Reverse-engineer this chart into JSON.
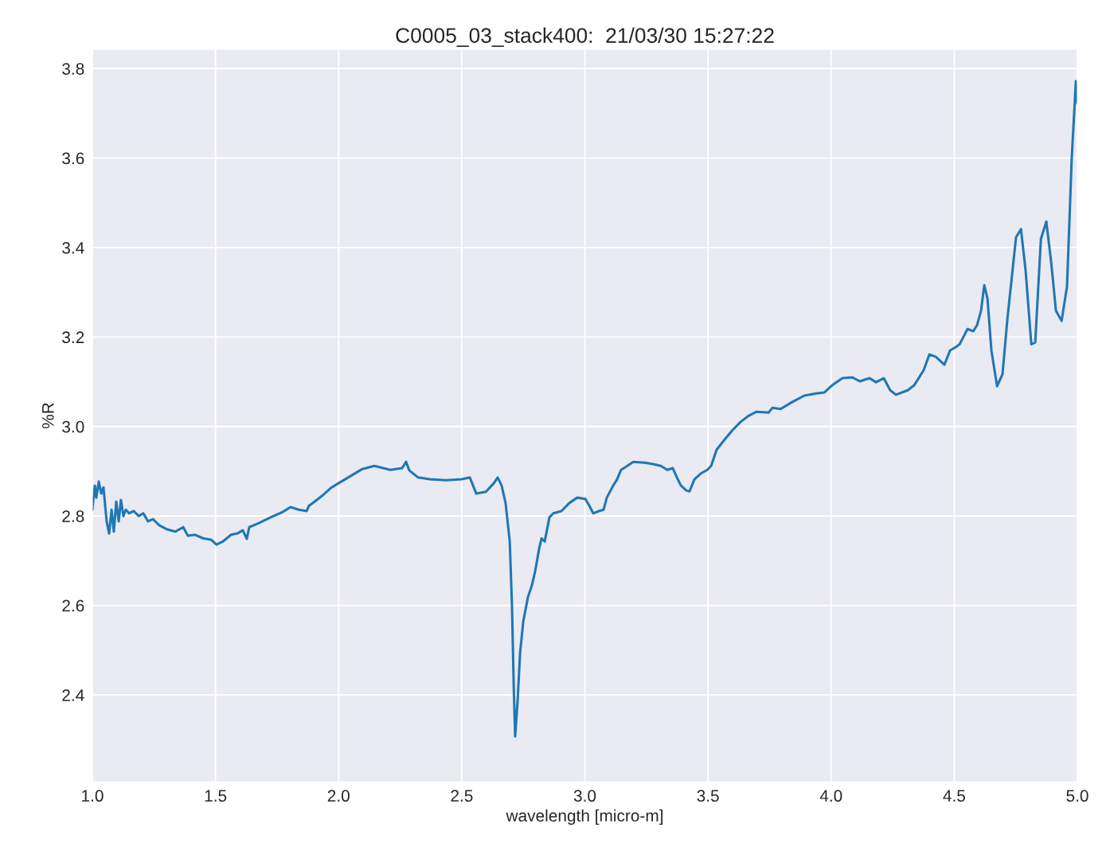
{
  "chart_data": {
    "type": "line",
    "title": "C0005_03_stack400:  21/03/30 15:27:22",
    "xlabel": "wavelength [micro-m]",
    "ylabel": "%R",
    "xlim": [
      1.0,
      5.0
    ],
    "ylim": [
      2.206,
      3.843
    ],
    "xticks": [
      {
        "value": 1.0,
        "label": "1.0"
      },
      {
        "value": 1.5,
        "label": "1.5"
      },
      {
        "value": 2.0,
        "label": "2.0"
      },
      {
        "value": 2.5,
        "label": "2.5"
      },
      {
        "value": 3.0,
        "label": "3.0"
      },
      {
        "value": 3.5,
        "label": "3.5"
      },
      {
        "value": 4.0,
        "label": "4.0"
      },
      {
        "value": 4.5,
        "label": "4.5"
      },
      {
        "value": 5.0,
        "label": "5.0"
      }
    ],
    "yticks": [
      {
        "value": 2.4,
        "label": "2.4"
      },
      {
        "value": 2.6,
        "label": "2.6"
      },
      {
        "value": 2.8,
        "label": "2.8"
      },
      {
        "value": 3.0,
        "label": "3.0"
      },
      {
        "value": 3.2,
        "label": "3.2"
      },
      {
        "value": 3.4,
        "label": "3.4"
      },
      {
        "value": 3.6,
        "label": "3.6"
      },
      {
        "value": 3.8,
        "label": "3.8"
      }
    ],
    "grid": true,
    "marker": "none",
    "line_style": "solid",
    "series": [
      {
        "color": "#1f77b4",
        "x": [
          1.0,
          1.01,
          1.016,
          1.026,
          1.036,
          1.045,
          1.058,
          1.068,
          1.078,
          1.087,
          1.097,
          1.107,
          1.116,
          1.126,
          1.136,
          1.149,
          1.168,
          1.188,
          1.207,
          1.226,
          1.246,
          1.272,
          1.304,
          1.336,
          1.369,
          1.388,
          1.417,
          1.45,
          1.482,
          1.504,
          1.53,
          1.563,
          1.589,
          1.611,
          1.627,
          1.637,
          1.676,
          1.724,
          1.773,
          1.805,
          1.838,
          1.87,
          1.88,
          1.902,
          1.935,
          1.967,
          1.999,
          2.048,
          2.096,
          2.145,
          2.21,
          2.258,
          2.274,
          2.287,
          2.323,
          2.371,
          2.436,
          2.5,
          2.533,
          2.559,
          2.598,
          2.63,
          2.646,
          2.662,
          2.678,
          2.695,
          2.704,
          2.711,
          2.717,
          2.727,
          2.737,
          2.75,
          2.769,
          2.785,
          2.798,
          2.814,
          2.824,
          2.837,
          2.856,
          2.872,
          2.905,
          2.937,
          2.969,
          3.002,
          3.018,
          3.034,
          3.057,
          3.076,
          3.089,
          3.115,
          3.131,
          3.147,
          3.17,
          3.196,
          3.244,
          3.277,
          3.309,
          3.335,
          3.357,
          3.374,
          3.39,
          3.412,
          3.425,
          3.445,
          3.471,
          3.497,
          3.513,
          3.535,
          3.568,
          3.6,
          3.632,
          3.665,
          3.697,
          3.746,
          3.762,
          3.794,
          3.843,
          3.891,
          3.94,
          3.972,
          4.004,
          4.046,
          4.085,
          4.117,
          4.156,
          4.182,
          4.214,
          4.24,
          4.263,
          4.311,
          4.337,
          4.376,
          4.399,
          4.425,
          4.46,
          4.483,
          4.505,
          4.522,
          4.554,
          4.577,
          4.593,
          4.609,
          4.622,
          4.635,
          4.651,
          4.674,
          4.696,
          4.716,
          4.751,
          4.771,
          4.79,
          4.813,
          4.829,
          4.852,
          4.874,
          4.894,
          4.913,
          4.936,
          4.958,
          4.977,
          4.994,
          5.0
        ],
        "values": [
          2.814,
          2.868,
          2.841,
          2.877,
          2.85,
          2.864,
          2.788,
          2.761,
          2.814,
          2.765,
          2.832,
          2.788,
          2.836,
          2.8,
          2.814,
          2.806,
          2.811,
          2.8,
          2.806,
          2.788,
          2.793,
          2.779,
          2.77,
          2.765,
          2.775,
          2.756,
          2.758,
          2.75,
          2.747,
          2.736,
          2.743,
          2.758,
          2.761,
          2.768,
          2.749,
          2.775,
          2.784,
          2.797,
          2.809,
          2.82,
          2.814,
          2.811,
          2.823,
          2.832,
          2.846,
          2.862,
          2.873,
          2.889,
          2.905,
          2.912,
          2.903,
          2.907,
          2.921,
          2.902,
          2.886,
          2.882,
          2.88,
          2.882,
          2.886,
          2.85,
          2.854,
          2.873,
          2.886,
          2.868,
          2.829,
          2.743,
          2.601,
          2.423,
          2.307,
          2.388,
          2.494,
          2.565,
          2.619,
          2.645,
          2.676,
          2.726,
          2.75,
          2.743,
          2.797,
          2.806,
          2.811,
          2.829,
          2.841,
          2.838,
          2.823,
          2.806,
          2.811,
          2.814,
          2.841,
          2.868,
          2.882,
          2.903,
          2.911,
          2.921,
          2.919,
          2.916,
          2.912,
          2.903,
          2.907,
          2.886,
          2.868,
          2.857,
          2.855,
          2.882,
          2.895,
          2.903,
          2.912,
          2.948,
          2.971,
          2.992,
          3.01,
          3.024,
          3.033,
          3.031,
          3.042,
          3.039,
          3.055,
          3.069,
          3.074,
          3.076,
          3.092,
          3.108,
          3.11,
          3.101,
          3.108,
          3.099,
          3.108,
          3.081,
          3.071,
          3.081,
          3.092,
          3.126,
          3.161,
          3.156,
          3.138,
          3.17,
          3.177,
          3.184,
          3.218,
          3.213,
          3.227,
          3.259,
          3.316,
          3.286,
          3.17,
          3.09,
          3.117,
          3.241,
          3.423,
          3.441,
          3.348,
          3.184,
          3.188,
          3.419,
          3.458,
          3.366,
          3.259,
          3.236,
          3.313,
          3.597,
          3.772,
          3.722
        ]
      }
    ]
  }
}
